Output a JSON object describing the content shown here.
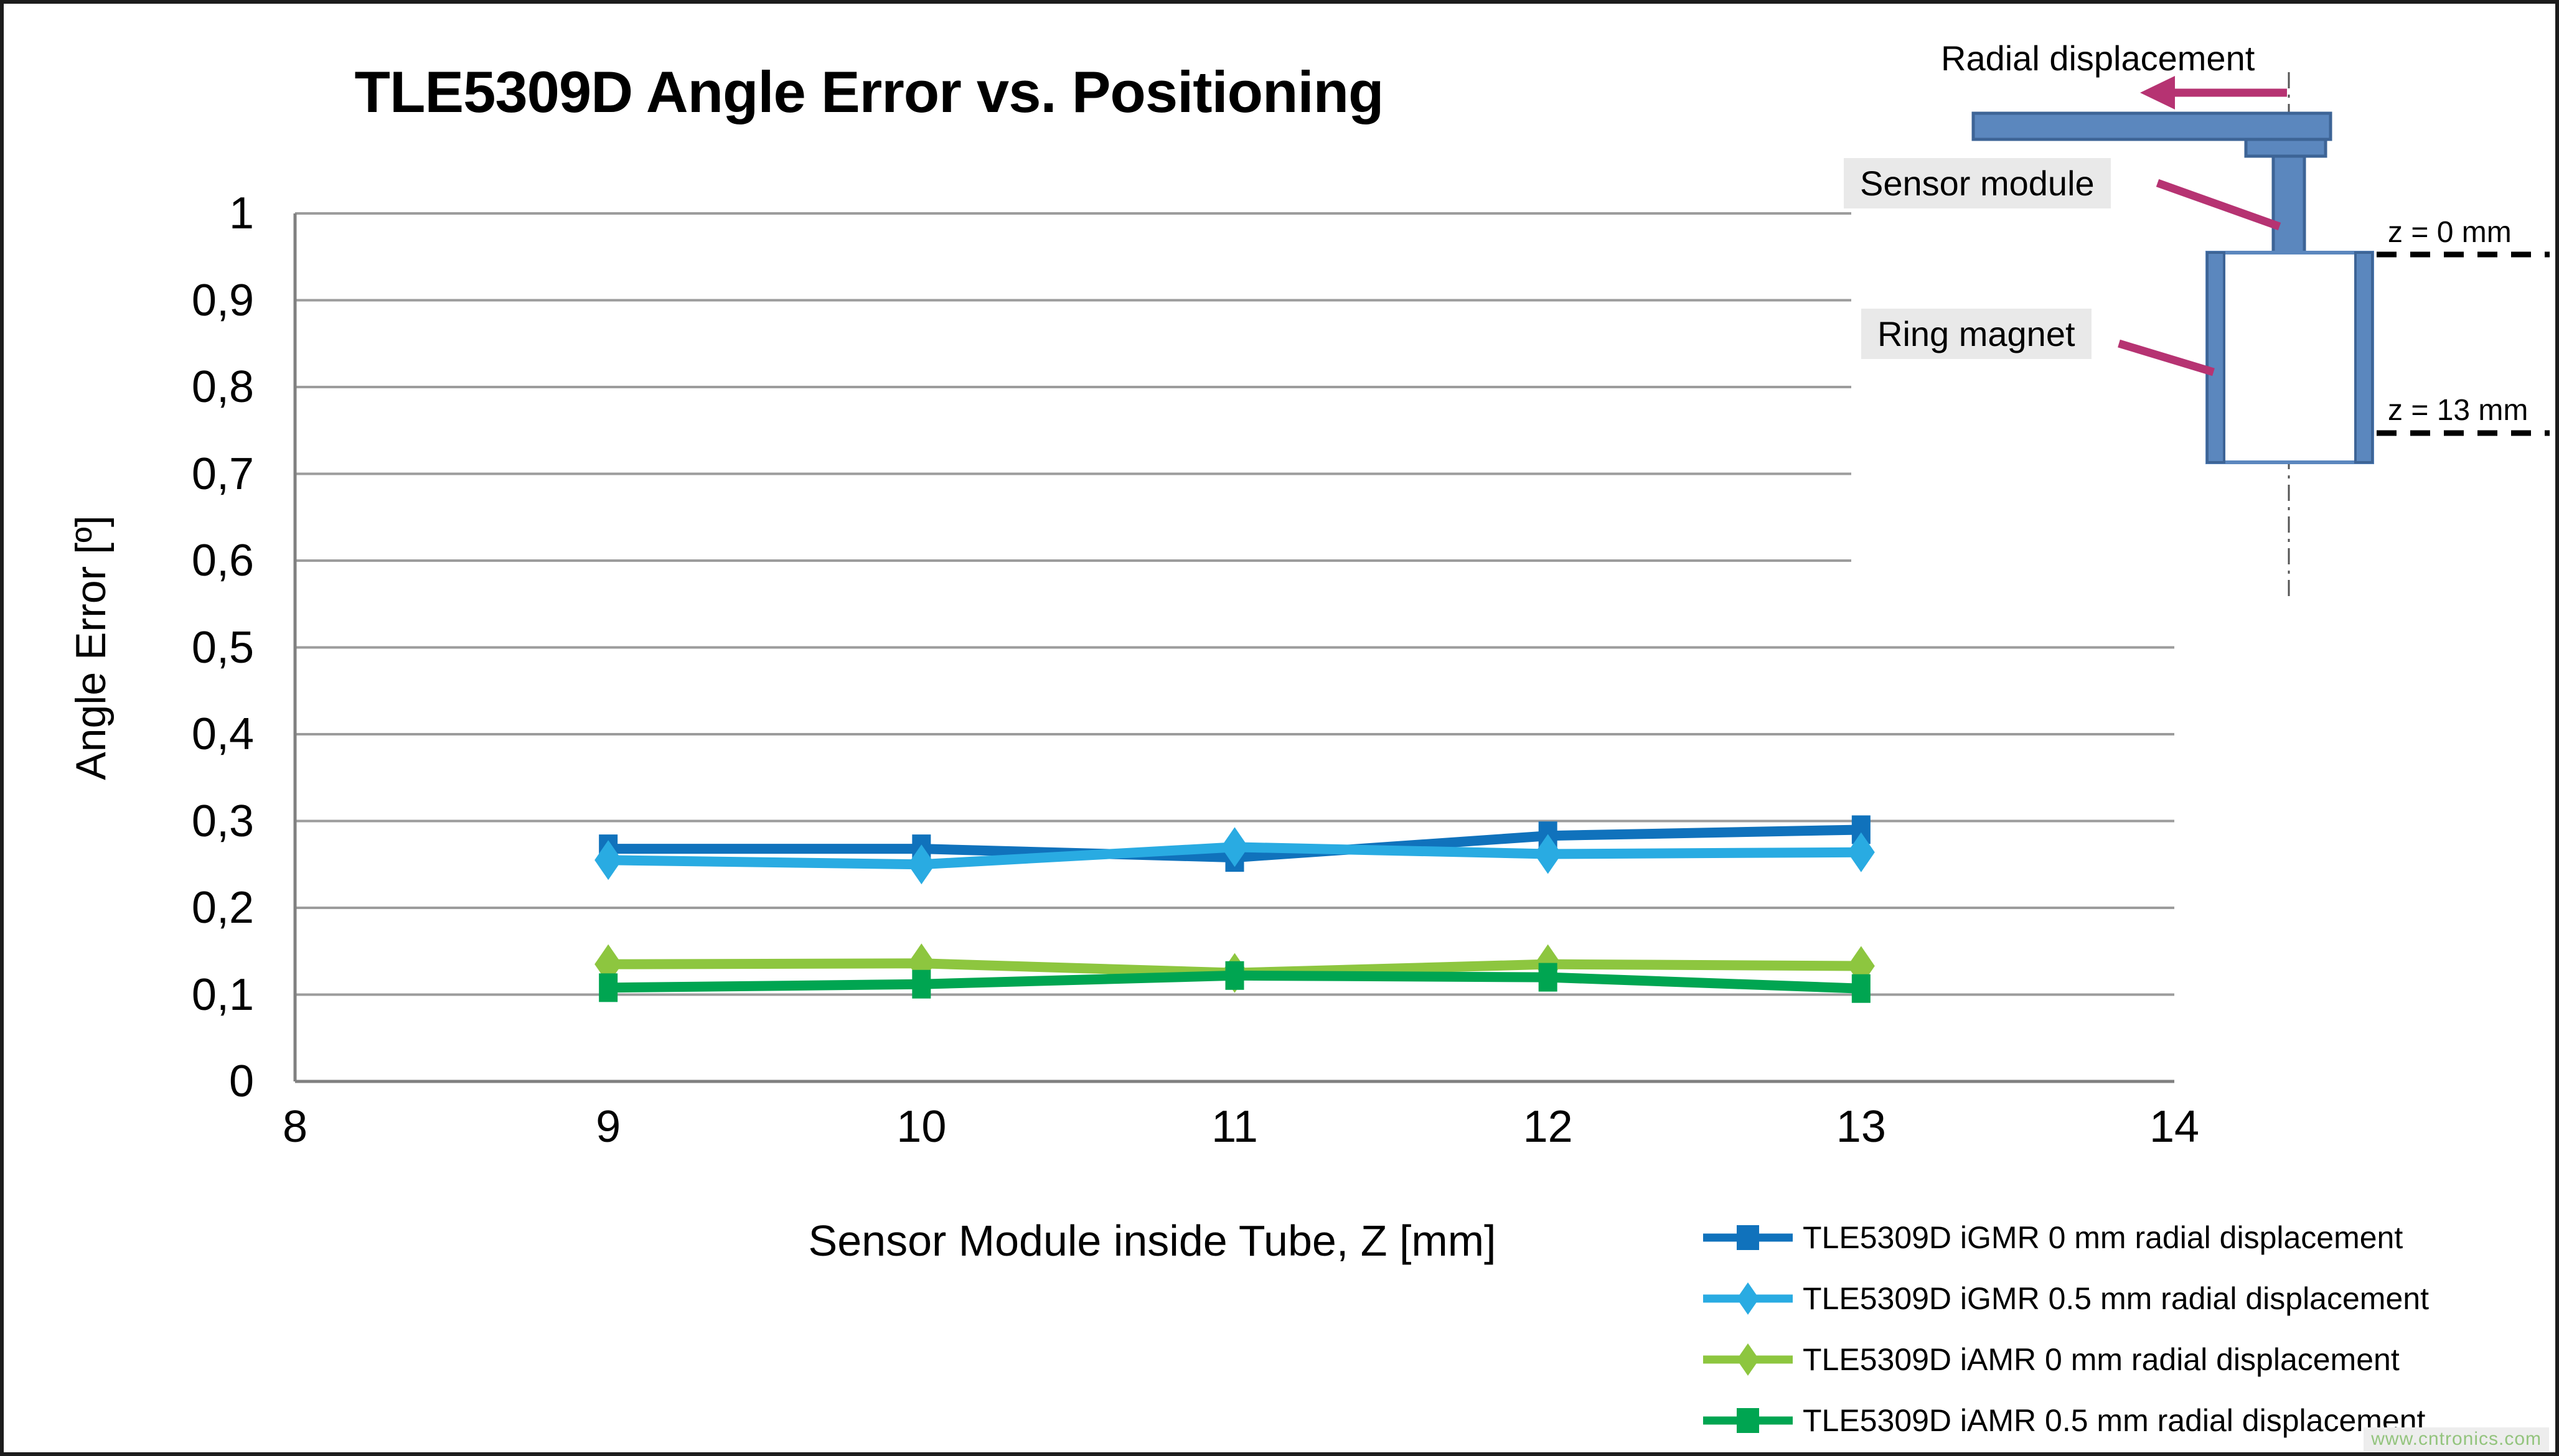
{
  "page": {
    "background": "#ffffff",
    "border_color": "#1c1c1c"
  },
  "title": "TLE5309D Angle Error vs. Positioning",
  "watermark": "www.cntronics.com",
  "chart_data": {
    "type": "line",
    "title": "TLE5309D Angle Error vs. Positioning",
    "xlabel": "Sensor Module inside Tube, Z [mm]",
    "ylabel": "Angle Error [º]",
    "xlim": [
      8,
      14
    ],
    "ylim": [
      0,
      1
    ],
    "x_ticks": [
      "8",
      "9",
      "10",
      "11",
      "12",
      "13",
      "14"
    ],
    "x_tick_values": [
      8,
      9,
      10,
      11,
      12,
      13,
      14
    ],
    "y_ticks": [
      "0",
      "0,1",
      "0,2",
      "0,3",
      "0,4",
      "0,5",
      "0,6",
      "0,7",
      "0,8",
      "0,9",
      "1"
    ],
    "y_tick_values": [
      0,
      0.1,
      0.2,
      0.3,
      0.4,
      0.5,
      0.6,
      0.7,
      0.8,
      0.9,
      1
    ],
    "grid": "horizontal-only",
    "legend_position": "bottom-right",
    "grid_color": "#9c9c9c",
    "axis_color": "#808080",
    "x": [
      9,
      10,
      11,
      12,
      13
    ],
    "series": [
      {
        "name": "TLE5309D iGMR 0 mm radial displacement",
        "color": "#1072bc",
        "marker": "square",
        "values": [
          0.268,
          0.268,
          0.258,
          0.283,
          0.29
        ]
      },
      {
        "name": "TLE5309D iGMR 0.5 mm radial displacement",
        "color": "#29abe2",
        "marker": "diamond",
        "values": [
          0.255,
          0.25,
          0.27,
          0.262,
          0.264
        ]
      },
      {
        "name": "TLE5309D iAMR 0 mm radial displacement",
        "color": "#8dc63f",
        "marker": "diamond",
        "values": [
          0.135,
          0.136,
          0.125,
          0.135,
          0.133
        ]
      },
      {
        "name": "TLE5309D iAMR 0.5 mm radial displacement",
        "color": "#00a551",
        "marker": "square",
        "values": [
          0.108,
          0.112,
          0.122,
          0.12,
          0.107
        ]
      }
    ]
  },
  "diagram": {
    "radial_label": "Radial displacement",
    "sensor_label": "Sensor module",
    "ring_label": "Ring magnet",
    "z0_label": "z = 0 mm",
    "z13_label": "z = 13 mm",
    "part_fill": "#5b87be",
    "part_stroke": "#3d6496",
    "pointer_color": "#b63372",
    "dash_color": "#000000",
    "centerline_color": "#555555"
  }
}
